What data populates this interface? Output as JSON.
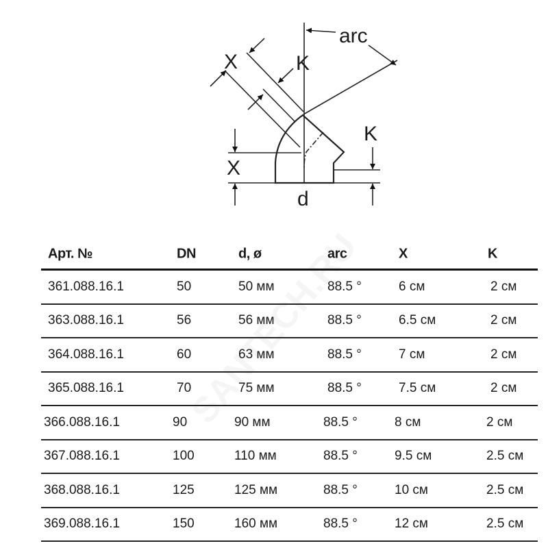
{
  "diagram": {
    "labels": {
      "arc": "arc",
      "x_top": "X",
      "k_top": "K",
      "x_left": "X",
      "k_right": "K",
      "d": "d"
    }
  },
  "table": {
    "headers": [
      "Арт. №",
      "DN",
      "d, ø",
      "arc",
      "X",
      "K"
    ],
    "rows": [
      [
        "361.088.16.1",
        "50",
        "50 мм",
        "88.5 °",
        "6 см",
        "2 см"
      ],
      [
        "363.088.16.1",
        "56",
        "56 мм",
        "88.5 °",
        "6.5 см",
        "2 см"
      ],
      [
        "364.088.16.1",
        "60",
        "63 мм",
        "88.5 °",
        "7 см",
        "2 см"
      ],
      [
        "365.088.16.1",
        "70",
        "75 мм",
        "88.5 °",
        "7.5 см",
        "2 см"
      ],
      [
        "366.088.16.1",
        "90",
        "90 мм",
        "88.5 °",
        "8 см",
        "2 см"
      ],
      [
        "367.088.16.1",
        "100",
        "110 мм",
        "88.5 °",
        "9.5 см",
        "2.5 см"
      ],
      [
        "368.088.16.1",
        "125",
        "125 мм",
        "88.5 °",
        "10 см",
        "2.5 см"
      ],
      [
        "369.088.16.1",
        "150",
        "160 мм",
        "88.5 °",
        "12 см",
        "2.5 см"
      ]
    ]
  },
  "watermark": "SANTECH.RU"
}
